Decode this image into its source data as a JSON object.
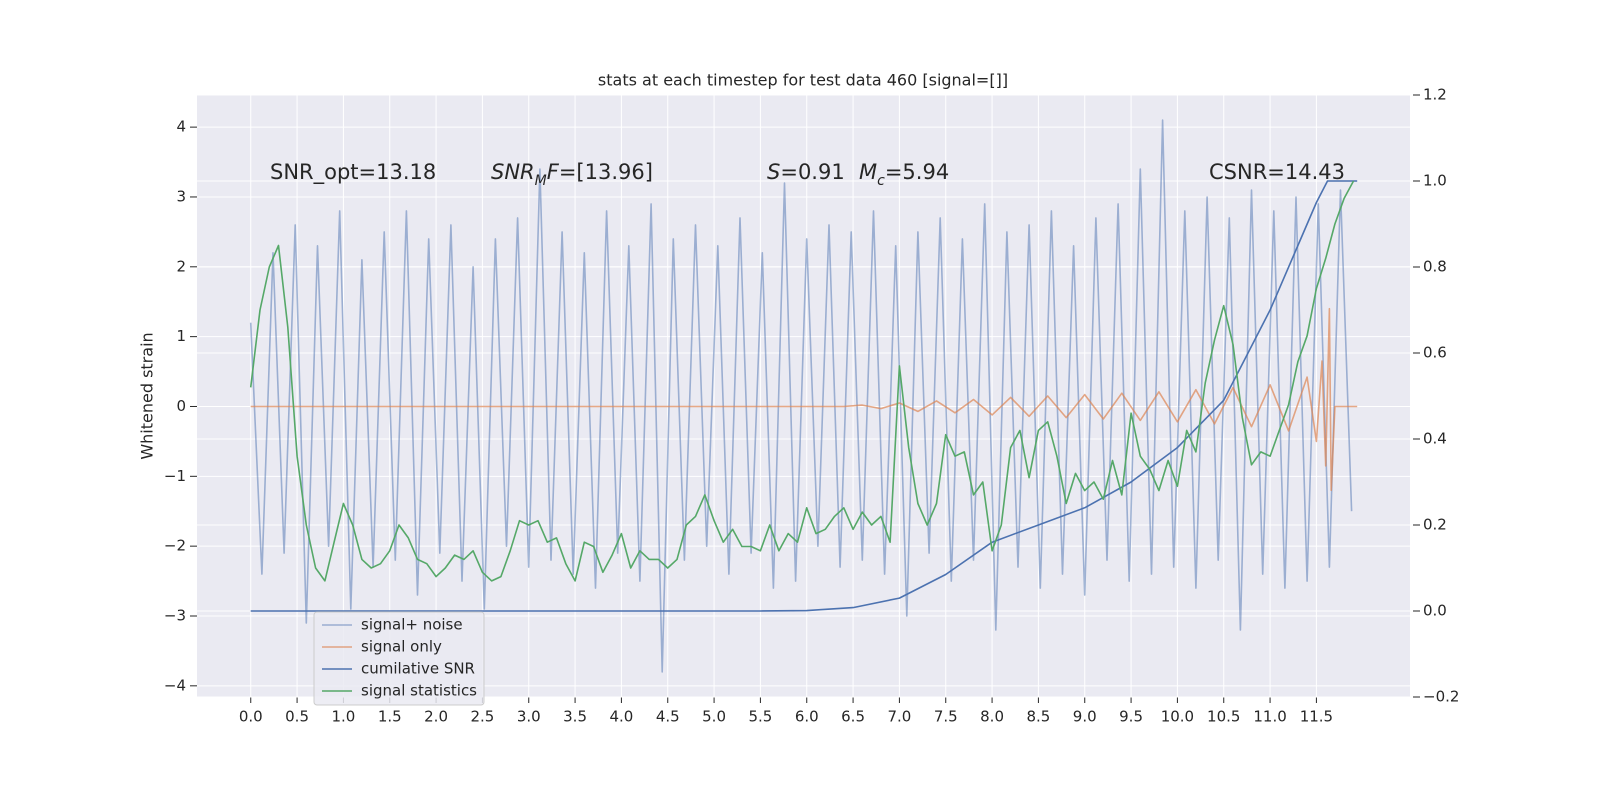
{
  "chart_data": {
    "type": "line",
    "title": "stats at each timestep for test data 460 [signal=[]]",
    "ylabel": "Whitened strain",
    "xlim": [
      -0.58,
      12.51
    ],
    "ylim": [
      -4.16,
      4.46
    ],
    "y2lim": [
      -0.2,
      1.2
    ],
    "grid": true,
    "legend": "lower left",
    "background": "#eaeaf2",
    "xticks": [
      {
        "value": 0,
        "label": "0.0"
      },
      0.5,
      {
        "value": 1,
        "label": "1.0"
      },
      1.5,
      {
        "value": 2,
        "label": "2.0"
      },
      2.5,
      {
        "value": 3,
        "label": "3.0"
      },
      3.5,
      {
        "value": 4,
        "label": "4.0"
      },
      4.5,
      {
        "value": 5,
        "label": "5.0"
      },
      5.5,
      {
        "value": 6,
        "label": "6.0"
      },
      6.5,
      {
        "value": 7,
        "label": "7.0"
      },
      7.5,
      {
        "value": 8,
        "label": "8.0"
      },
      8.5,
      {
        "value": 9,
        "label": "9.0"
      },
      9.5,
      {
        "value": 10,
        "label": "10.0"
      },
      10.5,
      {
        "value": 11,
        "label": "11.0"
      },
      11.5
    ],
    "yticks": [
      {
        "value": -4,
        "label": "−4"
      },
      {
        "value": -3,
        "label": "−3"
      },
      {
        "value": -2,
        "label": "−2"
      },
      {
        "value": -1,
        "label": "−1"
      },
      0,
      1,
      2,
      3,
      4
    ],
    "y2ticks": [
      {
        "value": -0.2,
        "label": "−0.2"
      },
      {
        "value": 0,
        "label": "0.0"
      },
      0.2,
      0.4,
      0.6,
      0.8,
      {
        "value": 1,
        "label": "1.0"
      },
      1.2
    ],
    "annotations": [
      [
        {
          "text": "SNR_opt=13.18"
        }
      ],
      [
        {
          "text": "SNR",
          "italic": true
        },
        {
          "text": "M",
          "italic": true,
          "sub": true
        },
        {
          "text": "F",
          "italic": true
        },
        {
          "text": "=[13.96]"
        }
      ],
      [
        {
          "text": "S",
          "italic": true
        },
        {
          "text": "=0.91"
        }
      ],
      [
        {
          "text": "M",
          "italic": true
        },
        {
          "text": "c",
          "italic": true,
          "sub": true
        },
        {
          "text": "=5.94"
        }
      ],
      [
        {
          "text": "CSNR=14.43"
        }
      ]
    ],
    "series": [
      {
        "name": "signal+ noise",
        "color": "#4c72b0",
        "opacity": 0.5,
        "x": [
          0,
          0.12,
          0.24,
          0.36,
          0.48,
          0.6,
          0.72,
          0.84,
          0.96,
          1.08,
          1.2,
          1.32,
          1.44,
          1.56,
          1.68,
          1.8,
          1.92,
          2.04,
          2.16,
          2.28,
          2.4,
          2.52,
          2.64,
          2.76,
          2.88,
          3.0,
          3.12,
          3.24,
          3.36,
          3.48,
          3.6,
          3.72,
          3.84,
          3.96,
          4.08,
          4.2,
          4.32,
          4.44,
          4.56,
          4.68,
          4.8,
          4.92,
          5.04,
          5.16,
          5.28,
          5.4,
          5.52,
          5.64,
          5.76,
          5.88,
          6.0,
          6.12,
          6.24,
          6.36,
          6.48,
          6.6,
          6.72,
          6.84,
          6.96,
          7.08,
          7.2,
          7.32,
          7.44,
          7.56,
          7.68,
          7.8,
          7.92,
          8.04,
          8.16,
          8.28,
          8.4,
          8.52,
          8.64,
          8.76,
          8.88,
          9.0,
          9.12,
          9.24,
          9.36,
          9.48,
          9.6,
          9.72,
          9.84,
          9.96,
          10.08,
          10.2,
          10.32,
          10.44,
          10.56,
          10.68,
          10.8,
          10.92,
          11.04,
          11.16,
          11.28,
          11.4,
          11.52,
          11.64,
          11.76,
          11.88
        ],
        "values": [
          1.2,
          -2.4,
          2.2,
          -2.1,
          2.6,
          -3.1,
          2.3,
          -2.0,
          2.8,
          -2.9,
          2.1,
          -2.3,
          2.5,
          -2.2,
          2.8,
          -2.7,
          2.4,
          -2.1,
          2.6,
          -2.5,
          2.0,
          -2.9,
          2.4,
          -2.0,
          2.7,
          -2.3,
          3.4,
          -2.2,
          2.5,
          -2.4,
          2.2,
          -2.6,
          2.8,
          -2.1,
          2.3,
          -2.5,
          2.9,
          -3.8,
          2.4,
          -2.2,
          2.6,
          -2.0,
          2.3,
          -2.4,
          2.7,
          -2.1,
          2.2,
          -2.6,
          3.2,
          -2.5,
          2.4,
          -2.0,
          2.6,
          -2.3,
          2.5,
          -2.2,
          2.8,
          -2.4,
          2.3,
          -3.0,
          2.5,
          -2.1,
          2.7,
          -2.5,
          2.4,
          -2.2,
          2.9,
          -3.2,
          2.5,
          -2.3,
          2.6,
          -2.6,
          2.8,
          -2.4,
          2.3,
          -2.7,
          2.7,
          -2.2,
          2.9,
          -2.5,
          3.4,
          -2.4,
          4.1,
          -2.3,
          2.8,
          -2.6,
          3.0,
          -2.2,
          2.7,
          -3.2,
          3.1,
          -2.4,
          2.8,
          -2.6,
          3.0,
          -2.5,
          2.9,
          -2.3,
          3.1,
          -1.5
        ]
      },
      {
        "name": "signal only",
        "color": "#dd8452",
        "opacity": 0.7,
        "x": [
          0,
          6.4,
          6.6,
          6.8,
          7.0,
          7.2,
          7.4,
          7.6,
          7.8,
          8.0,
          8.2,
          8.4,
          8.6,
          8.8,
          9.0,
          9.2,
          9.4,
          9.6,
          9.8,
          10.0,
          10.2,
          10.4,
          10.6,
          10.8,
          11.0,
          11.2,
          11.4,
          11.5,
          11.56,
          11.6,
          11.64,
          11.66,
          11.7,
          11.94
        ],
        "values": [
          0,
          0,
          0.02,
          -0.03,
          0.05,
          -0.07,
          0.08,
          -0.09,
          0.1,
          -0.12,
          0.13,
          -0.14,
          0.15,
          -0.16,
          0.17,
          -0.18,
          0.19,
          -0.2,
          0.21,
          -0.22,
          0.24,
          -0.25,
          0.27,
          -0.29,
          0.31,
          -0.35,
          0.42,
          -0.5,
          0.65,
          -0.85,
          1.4,
          -1.2,
          0,
          0
        ]
      },
      {
        "name": "cumilative SNR",
        "color": "#4c72b0",
        "opacity": 1,
        "axis": "y2",
        "x": [
          0,
          5.5,
          6.0,
          6.5,
          7.0,
          7.5,
          8.0,
          8.5,
          9.0,
          9.5,
          10.0,
          10.5,
          11.0,
          11.3,
          11.5,
          11.62,
          11.94
        ],
        "values": [
          0,
          0,
          0.001,
          0.008,
          0.03,
          0.085,
          0.16,
          0.2,
          0.24,
          0.3,
          0.38,
          0.49,
          0.7,
          0.85,
          0.95,
          1.0,
          1.0
        ]
      },
      {
        "name": "signal statistics",
        "color": "#55a868",
        "opacity": 1,
        "axis": "y2",
        "x": [
          0,
          0.1,
          0.2,
          0.3,
          0.4,
          0.5,
          0.6,
          0.7,
          0.8,
          0.9,
          1.0,
          1.1,
          1.2,
          1.3,
          1.4,
          1.5,
          1.6,
          1.7,
          1.8,
          1.9,
          2.0,
          2.1,
          2.2,
          2.3,
          2.4,
          2.5,
          2.6,
          2.7,
          2.8,
          2.9,
          3.0,
          3.1,
          3.2,
          3.3,
          3.4,
          3.5,
          3.6,
          3.7,
          3.8,
          3.9,
          4.0,
          4.1,
          4.2,
          4.3,
          4.4,
          4.5,
          4.6,
          4.7,
          4.8,
          4.9,
          5.0,
          5.1,
          5.2,
          5.3,
          5.4,
          5.5,
          5.6,
          5.7,
          5.8,
          5.9,
          6.0,
          6.1,
          6.2,
          6.3,
          6.4,
          6.5,
          6.6,
          6.7,
          6.8,
          6.9,
          7.0,
          7.1,
          7.2,
          7.3,
          7.4,
          7.5,
          7.6,
          7.7,
          7.8,
          7.9,
          8.0,
          8.1,
          8.2,
          8.3,
          8.4,
          8.5,
          8.6,
          8.7,
          8.8,
          8.9,
          9.0,
          9.1,
          9.2,
          9.3,
          9.4,
          9.5,
          9.6,
          9.7,
          9.8,
          9.9,
          10.0,
          10.1,
          10.2,
          10.3,
          10.4,
          10.5,
          10.6,
          10.7,
          10.8,
          10.9,
          11.0,
          11.1,
          11.2,
          11.3,
          11.4,
          11.5,
          11.6,
          11.7,
          11.8,
          11.9
        ],
        "values": [
          0.52,
          0.7,
          0.8,
          0.85,
          0.66,
          0.36,
          0.2,
          0.1,
          0.07,
          0.16,
          0.25,
          0.2,
          0.12,
          0.1,
          0.11,
          0.14,
          0.2,
          0.17,
          0.12,
          0.11,
          0.08,
          0.1,
          0.13,
          0.12,
          0.14,
          0.09,
          0.07,
          0.08,
          0.14,
          0.21,
          0.2,
          0.21,
          0.16,
          0.17,
          0.11,
          0.07,
          0.16,
          0.15,
          0.09,
          0.13,
          0.18,
          0.1,
          0.14,
          0.12,
          0.12,
          0.1,
          0.12,
          0.2,
          0.22,
          0.27,
          0.21,
          0.16,
          0.19,
          0.15,
          0.15,
          0.14,
          0.2,
          0.14,
          0.18,
          0.16,
          0.24,
          0.18,
          0.19,
          0.22,
          0.24,
          0.19,
          0.23,
          0.2,
          0.22,
          0.16,
          0.57,
          0.38,
          0.25,
          0.2,
          0.25,
          0.41,
          0.36,
          0.37,
          0.27,
          0.3,
          0.14,
          0.2,
          0.38,
          0.42,
          0.31,
          0.42,
          0.44,
          0.36,
          0.25,
          0.32,
          0.28,
          0.3,
          0.26,
          0.35,
          0.27,
          0.46,
          0.36,
          0.33,
          0.28,
          0.35,
          0.29,
          0.42,
          0.37,
          0.53,
          0.63,
          0.71,
          0.62,
          0.45,
          0.34,
          0.37,
          0.36,
          0.42,
          0.48,
          0.58,
          0.64,
          0.75,
          0.82,
          0.9,
          0.96,
          1.0
        ]
      }
    ]
  }
}
